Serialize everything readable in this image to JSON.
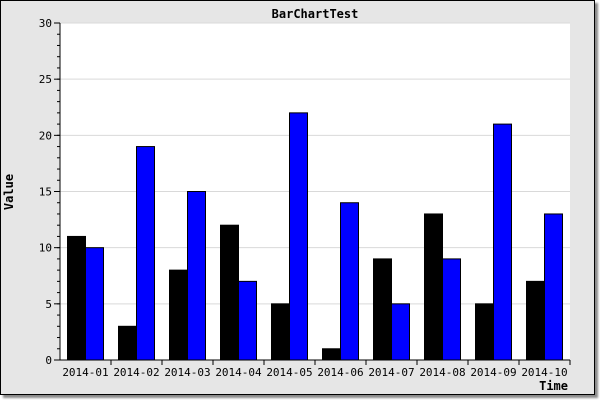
{
  "chart_data": {
    "type": "bar",
    "title": "BarChartTest",
    "xlabel": "Time",
    "ylabel": "Value",
    "ylim": [
      0,
      30
    ],
    "yticks": [
      0,
      5,
      10,
      15,
      20,
      25,
      30
    ],
    "grid": true,
    "categories": [
      "2014-01",
      "2014-02",
      "2014-03",
      "2014-04",
      "2014-05",
      "2014-06",
      "2014-07",
      "2014-08",
      "2014-09",
      "2014-10"
    ],
    "series": [
      {
        "color": "#000000",
        "values": [
          11,
          3,
          8,
          12,
          5,
          1,
          9,
          13,
          5,
          7
        ]
      },
      {
        "color": "#0000ff",
        "values": [
          10,
          19,
          15,
          7,
          22,
          14,
          5,
          9,
          21,
          13
        ]
      }
    ]
  }
}
